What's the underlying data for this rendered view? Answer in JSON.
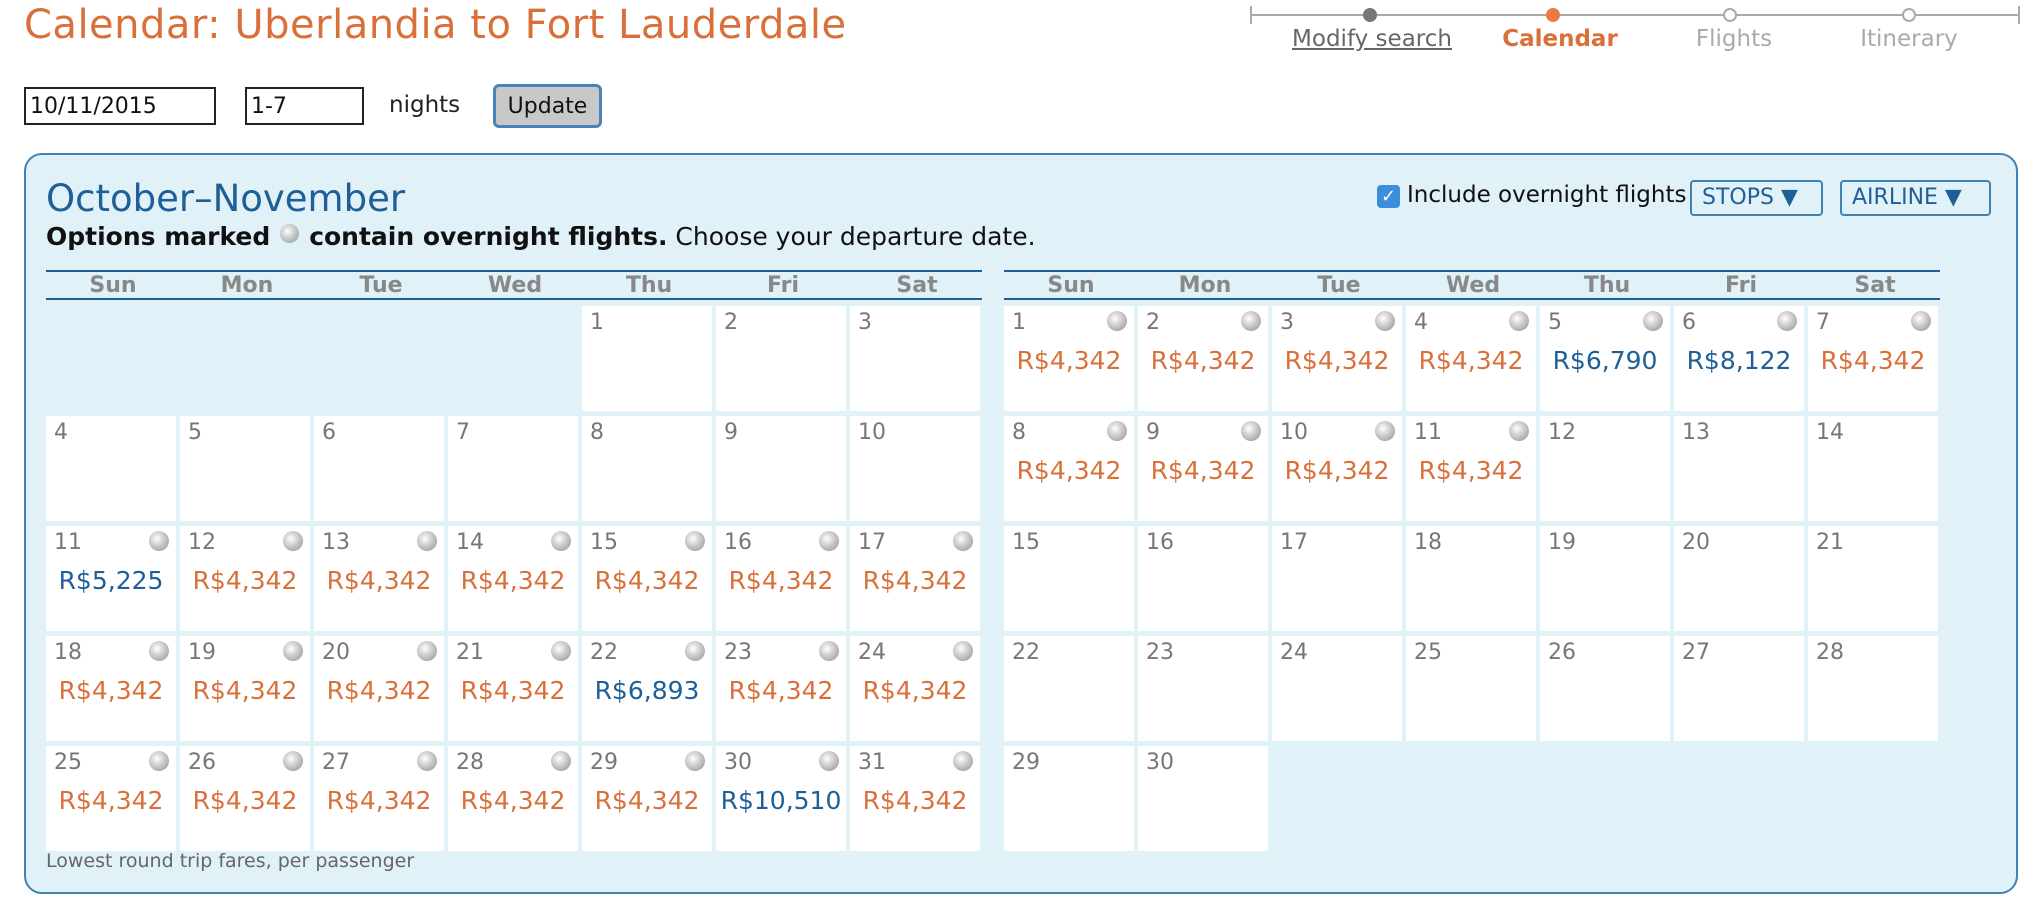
{
  "page_title": "Calendar: Uberlandia to Fort Lauderdale",
  "progress": {
    "steps": [
      {
        "label": "Modify search",
        "state": "past"
      },
      {
        "label": "Calendar",
        "state": "current"
      },
      {
        "label": "Flights",
        "state": "future"
      },
      {
        "label": "Itinerary",
        "state": "future"
      }
    ]
  },
  "search": {
    "date_value": "10/11/2015",
    "nights_value": "1-7",
    "nights_label": "nights",
    "update_label": "Update"
  },
  "calendar": {
    "title": "October–November",
    "subtitle_bold_before": "Options marked",
    "subtitle_bold_after": "contain overnight flights.",
    "subtitle_rest": "Choose your departure date.",
    "include_overnight_label": "Include overnight flights",
    "include_overnight_checked": true,
    "stops_label": "STOPS ▼",
    "airline_label": "AIRLINE ▼",
    "weekdays": [
      "Sun",
      "Mon",
      "Tue",
      "Wed",
      "Thu",
      "Fri",
      "Sat"
    ],
    "footnote": "Lowest round trip fares, per passenger",
    "price_colors": {
      "standard": "#d9703a",
      "higher": "#1f5f97"
    },
    "months": [
      {
        "key": "oct",
        "first_weekday": 4,
        "days": [
          {
            "d": "1"
          },
          {
            "d": "2"
          },
          {
            "d": "3"
          },
          {
            "d": "4"
          },
          {
            "d": "5"
          },
          {
            "d": "6"
          },
          {
            "d": "7"
          },
          {
            "d": "8"
          },
          {
            "d": "9"
          },
          {
            "d": "10"
          },
          {
            "d": "11",
            "price": "R$5,225",
            "tone": "higher",
            "overnight": true
          },
          {
            "d": "12",
            "price": "R$4,342",
            "tone": "standard",
            "overnight": true
          },
          {
            "d": "13",
            "price": "R$4,342",
            "tone": "standard",
            "overnight": true
          },
          {
            "d": "14",
            "price": "R$4,342",
            "tone": "standard",
            "overnight": true
          },
          {
            "d": "15",
            "price": "R$4,342",
            "tone": "standard",
            "overnight": true
          },
          {
            "d": "16",
            "price": "R$4,342",
            "tone": "standard",
            "overnight": true
          },
          {
            "d": "17",
            "price": "R$4,342",
            "tone": "standard",
            "overnight": true
          },
          {
            "d": "18",
            "price": "R$4,342",
            "tone": "standard",
            "overnight": true
          },
          {
            "d": "19",
            "price": "R$4,342",
            "tone": "standard",
            "overnight": true
          },
          {
            "d": "20",
            "price": "R$4,342",
            "tone": "standard",
            "overnight": true
          },
          {
            "d": "21",
            "price": "R$4,342",
            "tone": "standard",
            "overnight": true
          },
          {
            "d": "22",
            "price": "R$6,893",
            "tone": "higher",
            "overnight": true
          },
          {
            "d": "23",
            "price": "R$4,342",
            "tone": "standard",
            "overnight": true
          },
          {
            "d": "24",
            "price": "R$4,342",
            "tone": "standard",
            "overnight": true
          },
          {
            "d": "25",
            "price": "R$4,342",
            "tone": "standard",
            "overnight": true
          },
          {
            "d": "26",
            "price": "R$4,342",
            "tone": "standard",
            "overnight": true
          },
          {
            "d": "27",
            "price": "R$4,342",
            "tone": "standard",
            "overnight": true
          },
          {
            "d": "28",
            "price": "R$4,342",
            "tone": "standard",
            "overnight": true
          },
          {
            "d": "29",
            "price": "R$4,342",
            "tone": "standard",
            "overnight": true
          },
          {
            "d": "30",
            "price": "R$10,510",
            "tone": "higher",
            "overnight": true
          },
          {
            "d": "31",
            "price": "R$4,342",
            "tone": "standard",
            "overnight": true
          }
        ]
      },
      {
        "key": "nov",
        "first_weekday": 0,
        "days": [
          {
            "d": "1",
            "price": "R$4,342",
            "tone": "standard",
            "overnight": true
          },
          {
            "d": "2",
            "price": "R$4,342",
            "tone": "standard",
            "overnight": true
          },
          {
            "d": "3",
            "price": "R$4,342",
            "tone": "standard",
            "overnight": true
          },
          {
            "d": "4",
            "price": "R$4,342",
            "tone": "standard",
            "overnight": true
          },
          {
            "d": "5",
            "price": "R$6,790",
            "tone": "higher",
            "overnight": true
          },
          {
            "d": "6",
            "price": "R$8,122",
            "tone": "higher",
            "overnight": true
          },
          {
            "d": "7",
            "price": "R$4,342",
            "tone": "standard",
            "overnight": true
          },
          {
            "d": "8",
            "price": "R$4,342",
            "tone": "standard",
            "overnight": true
          },
          {
            "d": "9",
            "price": "R$4,342",
            "tone": "standard",
            "overnight": true
          },
          {
            "d": "10",
            "price": "R$4,342",
            "tone": "standard",
            "overnight": true
          },
          {
            "d": "11",
            "price": "R$4,342",
            "tone": "standard",
            "overnight": true
          },
          {
            "d": "12"
          },
          {
            "d": "13"
          },
          {
            "d": "14"
          },
          {
            "d": "15"
          },
          {
            "d": "16"
          },
          {
            "d": "17"
          },
          {
            "d": "18"
          },
          {
            "d": "19"
          },
          {
            "d": "20"
          },
          {
            "d": "21"
          },
          {
            "d": "22"
          },
          {
            "d": "23"
          },
          {
            "d": "24"
          },
          {
            "d": "25"
          },
          {
            "d": "26"
          },
          {
            "d": "27"
          },
          {
            "d": "28"
          },
          {
            "d": "29"
          },
          {
            "d": "30"
          }
        ]
      }
    ]
  }
}
